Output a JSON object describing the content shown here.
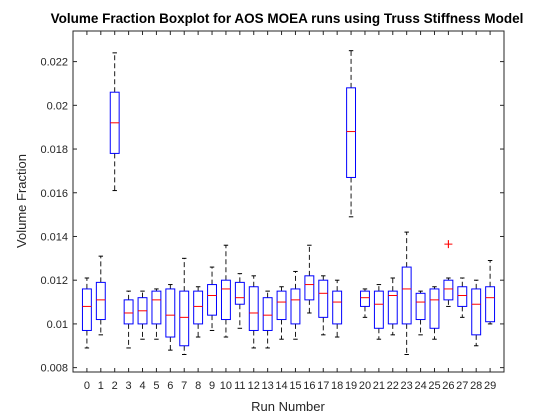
{
  "chart_data": {
    "type": "boxplot",
    "title": "Volume Fraction Boxplot for AOS MOEA runs using Truss Stiffness Model",
    "xlabel": "Run Number",
    "ylabel": "Volume Fraction",
    "ylim": [
      0.0078,
      0.0234
    ],
    "yticks": [
      0.008,
      0.01,
      0.012,
      0.014,
      0.016,
      0.018,
      0.02,
      0.022
    ],
    "ytick_labels": [
      "0.008",
      "0.01",
      "0.012",
      "0.014",
      "0.016",
      "0.018",
      "0.02",
      "0.022"
    ],
    "categories": [
      "0",
      "1",
      "2",
      "3",
      "4",
      "5",
      "6",
      "7",
      "8",
      "9",
      "10",
      "11",
      "12",
      "13",
      "14",
      "15",
      "16",
      "17",
      "18",
      "19",
      "20",
      "21",
      "22",
      "23",
      "24",
      "25",
      "26",
      "27",
      "28",
      "29"
    ],
    "grid": false,
    "colors": {
      "box": "#0000ff",
      "median": "#ff0000",
      "whisker": "#000000",
      "outlier": "#ff0000"
    },
    "boxes": [
      {
        "min": 0.0089,
        "q1": 0.0097,
        "median": 0.0108,
        "q3": 0.0116,
        "max": 0.0121
      },
      {
        "min": 0.0095,
        "q1": 0.0102,
        "median": 0.0111,
        "q3": 0.0119,
        "max": 0.0131
      },
      {
        "min": 0.0161,
        "q1": 0.0178,
        "median": 0.0192,
        "q3": 0.0206,
        "max": 0.0224
      },
      {
        "min": 0.0089,
        "q1": 0.01,
        "median": 0.0105,
        "q3": 0.0111,
        "max": 0.0115
      },
      {
        "min": 0.0093,
        "q1": 0.01,
        "median": 0.0106,
        "q3": 0.0112,
        "max": 0.0115
      },
      {
        "min": 0.0093,
        "q1": 0.01,
        "median": 0.0111,
        "q3": 0.0115,
        "max": 0.0116
      },
      {
        "min": 0.0088,
        "q1": 0.0094,
        "median": 0.0104,
        "q3": 0.0116,
        "max": 0.0118
      },
      {
        "min": 0.0086,
        "q1": 0.009,
        "median": 0.0103,
        "q3": 0.0115,
        "max": 0.013
      },
      {
        "min": 0.0094,
        "q1": 0.01,
        "median": 0.0108,
        "q3": 0.0115,
        "max": 0.0117
      },
      {
        "min": 0.0097,
        "q1": 0.0104,
        "median": 0.0113,
        "q3": 0.0118,
        "max": 0.0126
      },
      {
        "min": 0.0094,
        "q1": 0.0102,
        "median": 0.0116,
        "q3": 0.012,
        "max": 0.0136
      },
      {
        "min": 0.0098,
        "q1": 0.0109,
        "median": 0.0112,
        "q3": 0.0119,
        "max": 0.0123
      },
      {
        "min": 0.0089,
        "q1": 0.0097,
        "median": 0.0105,
        "q3": 0.0117,
        "max": 0.0122
      },
      {
        "min": 0.0089,
        "q1": 0.0097,
        "median": 0.0104,
        "q3": 0.0112,
        "max": 0.0115
      },
      {
        "min": 0.0093,
        "q1": 0.0102,
        "median": 0.011,
        "q3": 0.0115,
        "max": 0.0117
      },
      {
        "min": 0.0093,
        "q1": 0.01,
        "median": 0.0111,
        "q3": 0.0116,
        "max": 0.0124
      },
      {
        "min": 0.0105,
        "q1": 0.0111,
        "median": 0.0118,
        "q3": 0.0122,
        "max": 0.0136
      },
      {
        "min": 0.0095,
        "q1": 0.0103,
        "median": 0.0114,
        "q3": 0.012,
        "max": 0.0122
      },
      {
        "min": 0.0094,
        "q1": 0.01,
        "median": 0.011,
        "q3": 0.0115,
        "max": 0.012
      },
      {
        "min": 0.0149,
        "q1": 0.0167,
        "median": 0.0188,
        "q3": 0.0208,
        "max": 0.0225
      },
      {
        "min": 0.0103,
        "q1": 0.0108,
        "median": 0.0112,
        "q3": 0.0115,
        "max": 0.0116
      },
      {
        "min": 0.0093,
        "q1": 0.0098,
        "median": 0.0109,
        "q3": 0.0115,
        "max": 0.0118
      },
      {
        "min": 0.0095,
        "q1": 0.01,
        "median": 0.0113,
        "q3": 0.0115,
        "max": 0.0121
      },
      {
        "min": 0.0086,
        "q1": 0.01,
        "median": 0.0116,
        "q3": 0.0126,
        "max": 0.0142
      },
      {
        "min": 0.0095,
        "q1": 0.0102,
        "median": 0.011,
        "q3": 0.0114,
        "max": 0.0115
      },
      {
        "min": 0.0093,
        "q1": 0.0098,
        "median": 0.0111,
        "q3": 0.0116,
        "max": 0.0117
      },
      {
        "min": 0.0108,
        "q1": 0.0111,
        "median": 0.0116,
        "q3": 0.012,
        "max": 0.0121,
        "outliers": [
          0.01365
        ]
      },
      {
        "min": 0.0103,
        "q1": 0.0108,
        "median": 0.0113,
        "q3": 0.0117,
        "max": 0.0121
      },
      {
        "min": 0.009,
        "q1": 0.0095,
        "median": 0.0109,
        "q3": 0.0116,
        "max": 0.012
      },
      {
        "min": 0.01,
        "q1": 0.0101,
        "median": 0.0112,
        "q3": 0.0117,
        "max": 0.0129
      }
    ]
  }
}
